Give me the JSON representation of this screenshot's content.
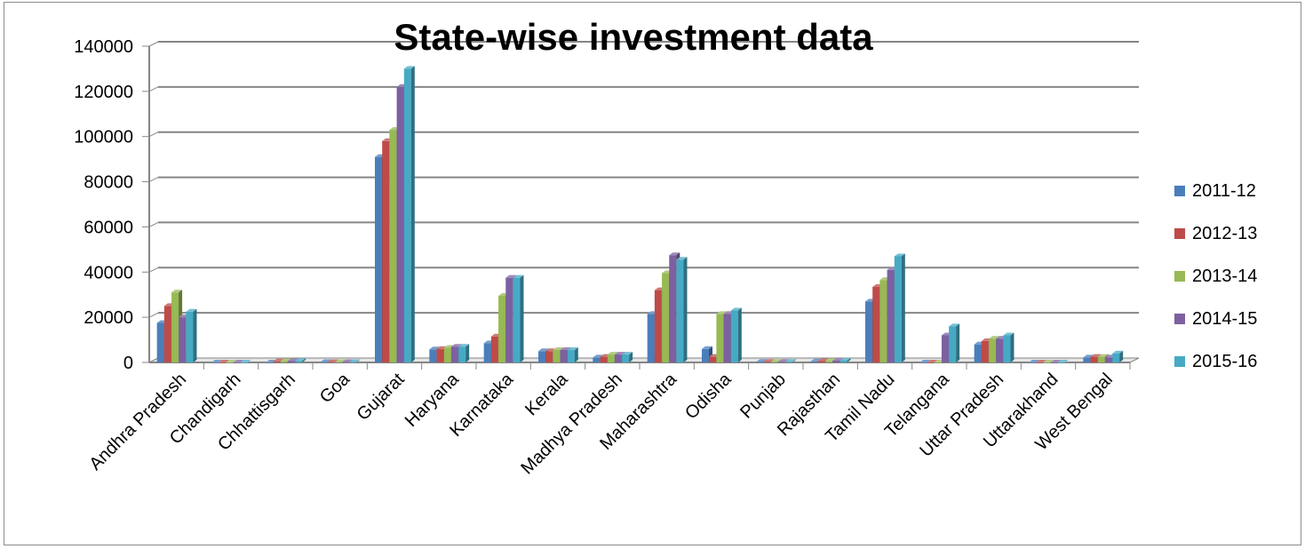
{
  "colors": [
    "#4a7ebb",
    "#be4b48",
    "#98b954",
    "#7d60a0",
    "#46aac5"
  ],
  "chart_data": {
    "type": "bar",
    "title": "State-wise investment data",
    "xlabel": "",
    "ylabel": "",
    "ylim": [
      0,
      140000
    ],
    "yticks": [
      0,
      20000,
      40000,
      60000,
      80000,
      100000,
      120000,
      140000
    ],
    "grid": true,
    "legend_position": "right",
    "categories": [
      "Andhra Pradesh",
      "Chandigarh",
      "Chhattisgarh",
      "Goa",
      "Gujarat",
      "Haryana",
      "Karnataka",
      "Kerala",
      "Madhya Pradesh",
      "Maharashtra",
      "Odisha",
      "Punjab",
      "Rajasthan",
      "Tamil Nadu",
      "Telangana",
      "Uttar Pradesh",
      "Uttarakhand",
      "West Bengal"
    ],
    "series": [
      {
        "name": "2011-12",
        "values": [
          17500,
          0,
          0,
          200,
          91000,
          5800,
          8500,
          5000,
          2200,
          21500,
          6000,
          300,
          500,
          27000,
          0,
          8000,
          0,
          2200
        ]
      },
      {
        "name": "2012-13",
        "values": [
          25000,
          0,
          500,
          200,
          98000,
          6000,
          11500,
          5000,
          2500,
          32000,
          2500,
          300,
          600,
          33500,
          0,
          9500,
          0,
          2500
        ]
      },
      {
        "name": "2013-14",
        "values": [
          31000,
          0,
          600,
          200,
          103000,
          6500,
          29500,
          5500,
          3500,
          39500,
          21500,
          300,
          700,
          36500,
          0,
          10500,
          0,
          2500
        ]
      },
      {
        "name": "2014-15",
        "values": [
          20000,
          0,
          600,
          200,
          122000,
          7000,
          37500,
          5500,
          3500,
          47500,
          21500,
          300,
          800,
          41000,
          12000,
          10500,
          0,
          2200
        ]
      },
      {
        "name": "2015-16",
        "values": [
          22500,
          0,
          700,
          200,
          130000,
          7000,
          37500,
          5500,
          3500,
          45500,
          23000,
          300,
          800,
          47000,
          16000,
          12000,
          0,
          4000
        ]
      }
    ]
  }
}
